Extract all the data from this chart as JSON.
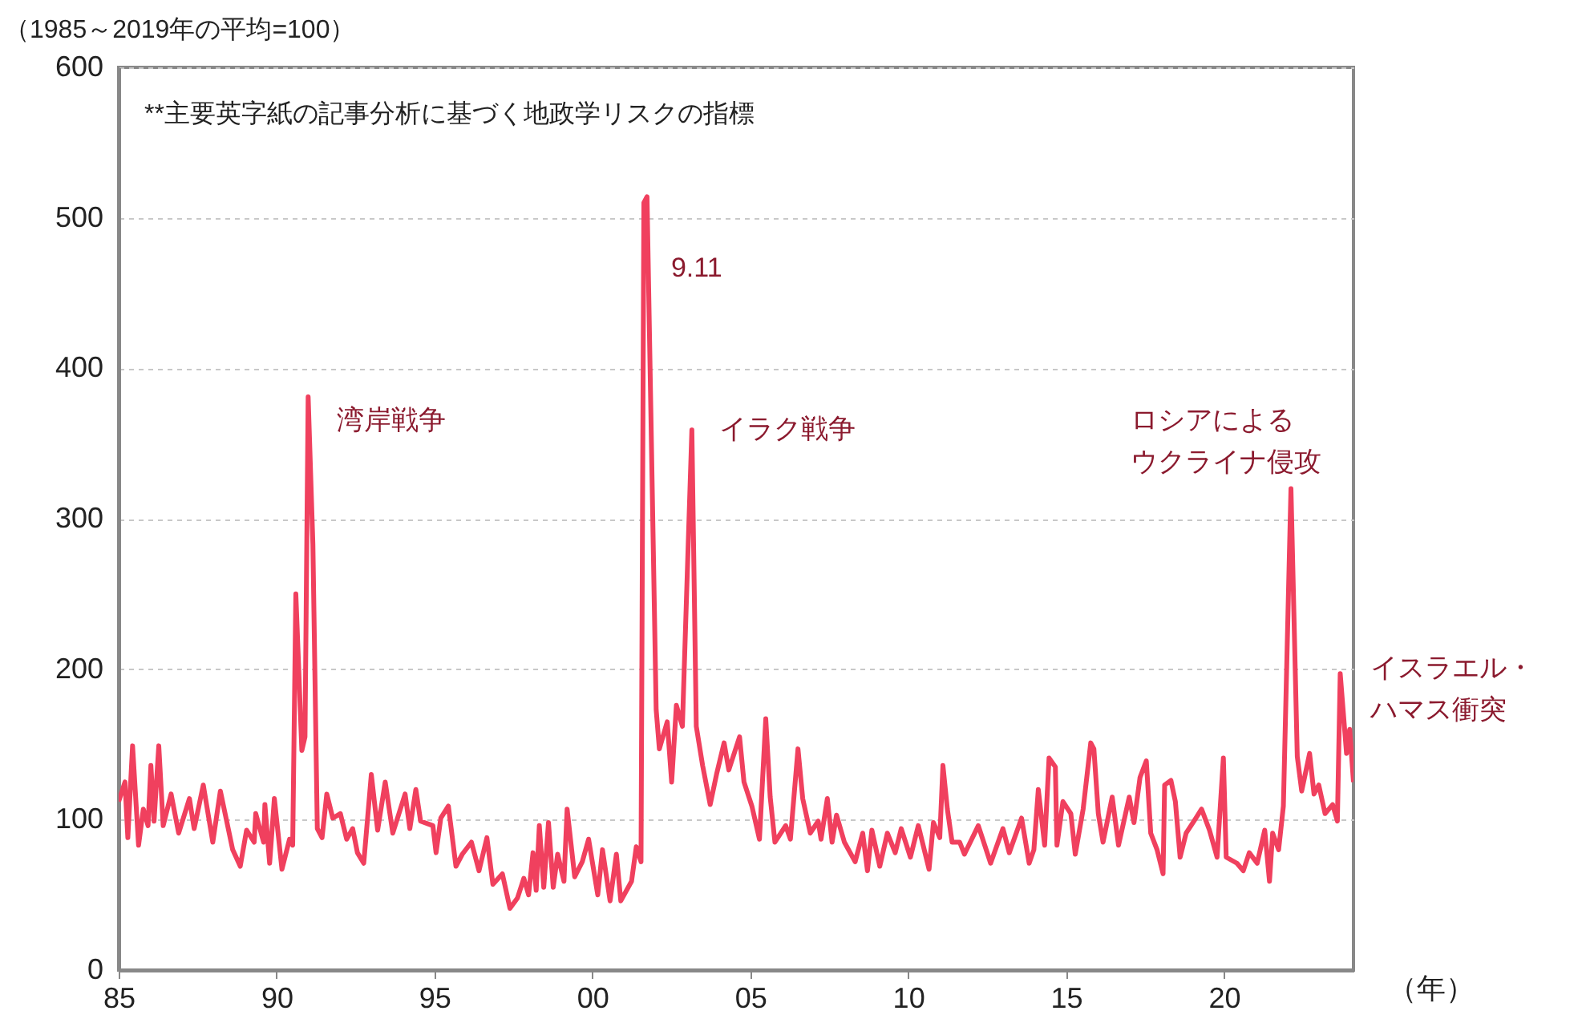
{
  "chart_data": {
    "type": "line",
    "ylabel": "（1985～2019年の平均=100）",
    "xlabel": "（年）",
    "annotations": [
      "**主要英字紙の記事分析に基づく地政学リスクの指標",
      {
        "text": "湾岸戦争",
        "x": 1991.0,
        "y": 381
      },
      {
        "text": "9.11",
        "x": 2001.73,
        "y": 514
      },
      {
        "text": "イラク戦争",
        "x": 2003.15,
        "y": 359
      },
      {
        "text": "ロシアによるウクライナ侵攻",
        "x": 2022.12,
        "y": 320
      },
      {
        "text": "イスラエル・ハマス衝突",
        "x": 2023.68,
        "y": 197
      }
    ],
    "series": [
      {
        "color": "#f0405e",
        "x": [
          1985.0,
          1985.2,
          1985.29,
          1985.44,
          1985.63,
          1985.78,
          1985.93,
          1986.02,
          1986.12,
          1986.27,
          1986.41,
          1986.66,
          1986.9,
          1987.24,
          1987.39,
          1987.68,
          1987.98,
          1988.22,
          1988.61,
          1988.85,
          1989.05,
          1989.29,
          1989.34,
          1989.59,
          1989.63,
          1989.78,
          1989.93,
          1990.17,
          1990.41,
          1990.51,
          1990.61,
          1990.8,
          1990.9,
          1991.0,
          1991.15,
          1991.29,
          1991.44,
          1991.59,
          1991.78,
          1992.02,
          1992.22,
          1992.41,
          1992.56,
          1992.76,
          1993.0,
          1993.2,
          1993.44,
          1993.68,
          1994.07,
          1994.22,
          1994.41,
          1994.56,
          1994.95,
          1995.05,
          1995.2,
          1995.44,
          1995.68,
          1995.88,
          1996.17,
          1996.41,
          1996.66,
          1996.85,
          1997.15,
          1997.39,
          1997.63,
          1997.83,
          1997.98,
          1998.12,
          1998.22,
          1998.32,
          1998.46,
          1998.61,
          1998.76,
          1998.9,
          1999.1,
          1999.2,
          1999.44,
          1999.68,
          1999.88,
          2000.17,
          2000.32,
          2000.56,
          2000.76,
          2000.9,
          2001.24,
          2001.39,
          2001.54,
          2001.63,
          2001.73,
          2002.02,
          2002.12,
          2002.37,
          2002.51,
          2002.66,
          2002.85,
          2003.15,
          2003.29,
          2003.49,
          2003.73,
          2003.93,
          2004.17,
          2004.32,
          2004.66,
          2004.8,
          2005.05,
          2005.29,
          2005.49,
          2005.63,
          2005.78,
          2006.12,
          2006.27,
          2006.51,
          2006.66,
          2006.9,
          2007.15,
          2007.24,
          2007.44,
          2007.59,
          2007.73,
          2007.98,
          2008.32,
          2008.56,
          2008.71,
          2008.85,
          2009.1,
          2009.34,
          2009.59,
          2009.78,
          2010.07,
          2010.32,
          2010.66,
          2010.8,
          2011.0,
          2011.1,
          2011.24,
          2011.39,
          2011.63,
          2011.78,
          2012.22,
          2012.61,
          2013.0,
          2013.2,
          2013.59,
          2013.83,
          2013.98,
          2014.12,
          2014.32,
          2014.46,
          2014.66,
          2014.71,
          2014.9,
          2015.15,
          2015.29,
          2015.54,
          2015.78,
          2015.88,
          2016.02,
          2016.17,
          2016.46,
          2016.66,
          2017.0,
          2017.15,
          2017.34,
          2017.54,
          2017.68,
          2017.88,
          2018.07,
          2018.12,
          2018.32,
          2018.46,
          2018.61,
          2018.8,
          2019.05,
          2019.29,
          2019.54,
          2019.78,
          2019.98,
          2020.07,
          2020.41,
          2020.61,
          2020.8,
          2021.05,
          2021.29,
          2021.44,
          2021.54,
          2021.73,
          2021.88,
          2022.12,
          2022.32,
          2022.46,
          2022.71,
          2022.85,
          2023.0,
          2023.2,
          2023.44,
          2023.59,
          2023.68,
          2023.88,
          2023.98,
          2024.1
        ],
        "values": [
          112,
          125,
          88,
          149,
          83,
          107,
          96,
          136,
          99,
          149,
          96,
          117,
          91,
          114,
          94,
          123,
          85,
          119,
          80,
          69,
          93,
          85,
          104,
          85,
          110,
          71,
          114,
          67,
          87,
          83,
          250,
          146,
          155,
          381,
          283,
          94,
          88,
          117,
          101,
          104,
          87,
          94,
          78,
          71,
          130,
          93,
          125,
          91,
          117,
          94,
          120,
          99,
          96,
          78,
          101,
          109,
          69,
          77,
          85,
          66,
          88,
          57,
          64,
          41,
          48,
          61,
          50,
          78,
          53,
          96,
          55,
          98,
          55,
          77,
          59,
          107,
          62,
          72,
          87,
          50,
          80,
          46,
          77,
          46,
          59,
          82,
          72,
          510,
          514,
          173,
          147,
          165,
          125,
          176,
          162,
          359,
          162,
          136,
          110,
          130,
          151,
          133,
          155,
          125,
          109,
          87,
          167,
          115,
          85,
          96,
          87,
          147,
          114,
          91,
          99,
          87,
          114,
          85,
          103,
          85,
          72,
          91,
          66,
          93,
          69,
          91,
          78,
          94,
          75,
          96,
          67,
          98,
          88,
          136,
          107,
          85,
          85,
          77,
          96,
          71,
          94,
          78,
          101,
          71,
          80,
          120,
          83,
          141,
          135,
          83,
          112,
          104,
          77,
          107,
          151,
          147,
          104,
          85,
          115,
          83,
          115,
          98,
          128,
          139,
          91,
          80,
          64,
          123,
          126,
          112,
          75,
          91,
          99,
          107,
          93,
          75,
          141,
          75,
          71,
          66,
          78,
          71,
          93,
          59,
          91,
          80,
          109,
          320,
          142,
          119,
          144,
          117,
          123,
          104,
          110,
          99,
          197,
          144,
          160,
          125
        ]
      }
    ],
    "xlim": [
      1985,
      2024.1
    ],
    "ylim": [
      0,
      600
    ],
    "xticks": [
      {
        "value": 1985,
        "label": "85"
      },
      {
        "value": 1990,
        "label": "90"
      },
      {
        "value": 1995,
        "label": "95"
      },
      {
        "value": 2000,
        "label": "00"
      },
      {
        "value": 2005,
        "label": "05"
      },
      {
        "value": 2010,
        "label": "10"
      },
      {
        "value": 2015,
        "label": "15"
      },
      {
        "value": 2020,
        "label": "20"
      }
    ],
    "yticks": [
      0,
      100,
      200,
      300,
      400,
      500,
      600
    ],
    "grid": "y",
    "marker": "none",
    "line_style": "solid"
  }
}
